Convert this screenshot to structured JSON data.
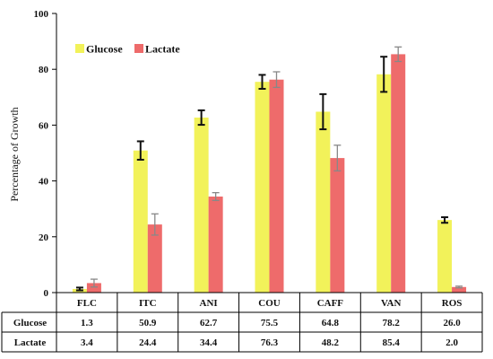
{
  "chart_data": {
    "type": "bar",
    "categories": [
      "FLC",
      "ITC",
      "ANI",
      "COU",
      "CAFF",
      "VAN",
      "ROS"
    ],
    "series": [
      {
        "name": "Glucose",
        "color": "#f2f25a",
        "values": [
          1.3,
          50.9,
          62.7,
          75.5,
          64.8,
          78.2,
          26.0
        ],
        "errors": [
          0.5,
          3.3,
          2.6,
          2.5,
          6.3,
          6.3,
          1.0
        ],
        "labels": [
          "1.3",
          "50.9",
          "62.7",
          "75.5",
          "64.8",
          "78.2",
          "26.0"
        ]
      },
      {
        "name": "Lactate",
        "color": "#ee6b6b",
        "values": [
          3.4,
          24.4,
          34.4,
          76.3,
          48.2,
          85.4,
          2.0
        ],
        "errors": [
          1.4,
          3.8,
          1.4,
          2.8,
          4.6,
          2.6,
          0.3
        ],
        "labels": [
          "3.4",
          "24.4",
          "34.4",
          "76.3",
          "48.2",
          "85.4",
          "2.0"
        ]
      }
    ],
    "ylabel": "Percentage of Growth",
    "ylim": [
      0,
      100
    ],
    "yticks": [
      0,
      20,
      40,
      60,
      80,
      100
    ],
    "legend_position": "top-left",
    "grid": false,
    "table_rows": [
      "Glucose",
      "Lactate"
    ]
  }
}
